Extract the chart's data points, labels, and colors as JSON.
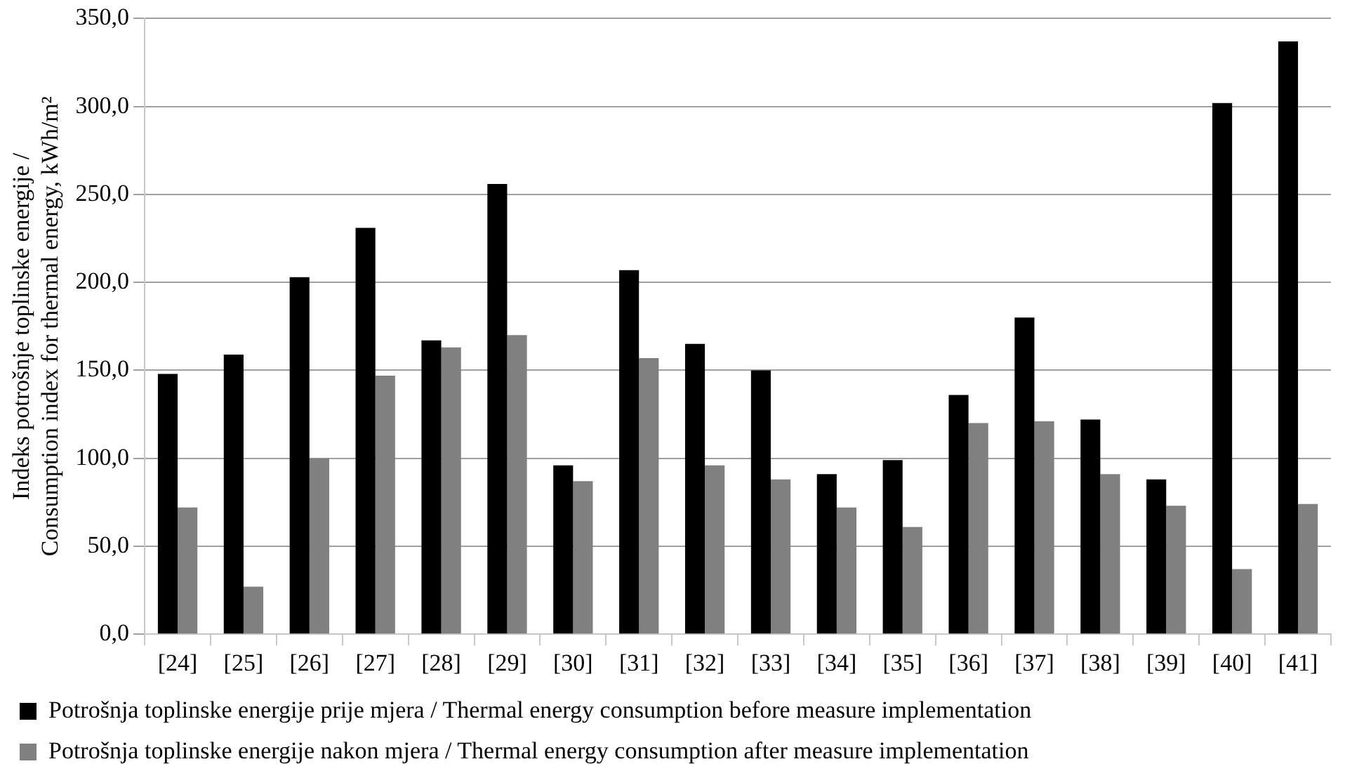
{
  "chart_data": {
    "type": "bar",
    "ylabel": "Indeks potrošnje toplinske energije / Consumption index for thermal energy, kWh/m²",
    "categories": [
      "[24]",
      "[25]",
      "[26]",
      "[27]",
      "[28]",
      "[29]",
      "[30]",
      "[31]",
      "[32]",
      "[33]",
      "[34]",
      "[35]",
      "[36]",
      "[37]",
      "[38]",
      "[39]",
      "[40]",
      "[41]"
    ],
    "series": [
      {
        "name": "Potrošnja toplinske energije prije mjera / Thermal energy consumption before measure implementation",
        "color": "#000000",
        "values": [
          148,
          159,
          203,
          231,
          167,
          256,
          96,
          207,
          165,
          150,
          91,
          99,
          136,
          180,
          122,
          88,
          302,
          337
        ]
      },
      {
        "name": "Potrošnja toplinske energije nakon mjera / Thermal energy consumption after measure implementation",
        "color": "#808080",
        "values": [
          72,
          27,
          100,
          147,
          163,
          170,
          87,
          157,
          96,
          88,
          72,
          61,
          120,
          121,
          91,
          73,
          37,
          74
        ]
      }
    ],
    "ylim": [
      0,
      350
    ],
    "yticks": [
      {
        "value": 0,
        "label": "0,0"
      },
      {
        "value": 50,
        "label": "50,0"
      },
      {
        "value": 100,
        "label": "100,0"
      },
      {
        "value": 150,
        "label": "150,0"
      },
      {
        "value": 200,
        "label": "200,0"
      },
      {
        "value": 250,
        "label": "250,0"
      },
      {
        "value": 300,
        "label": "300,0"
      },
      {
        "value": 350,
        "label": "350,0"
      }
    ],
    "grid": "y",
    "legend": "bottom"
  }
}
